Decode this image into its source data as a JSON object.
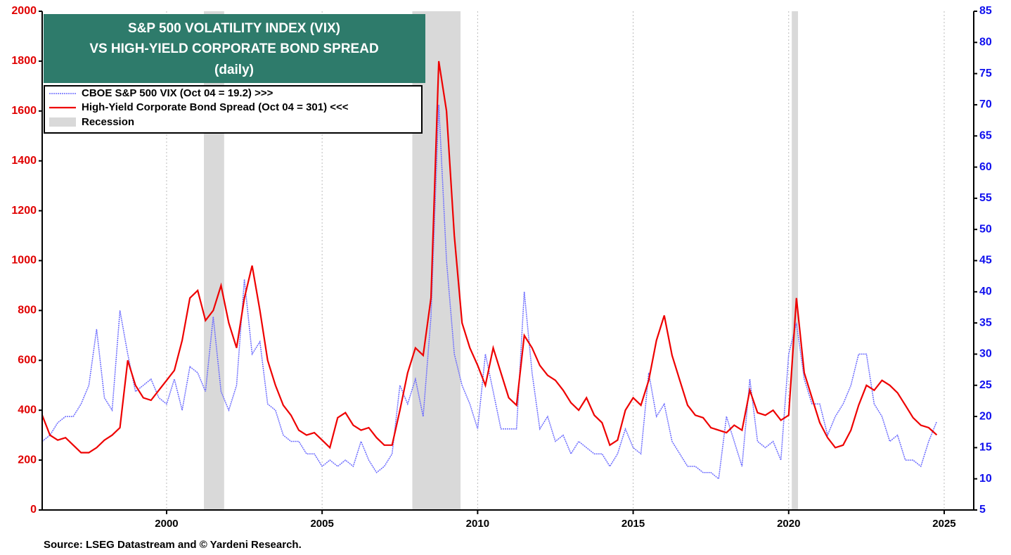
{
  "chart_data": {
    "type": "line",
    "title_lines": [
      "S&P 500 VOLATILITY INDEX (VIX)",
      "VS HIGH-YIELD CORPORATE BOND SPREAD",
      "(daily)"
    ],
    "source": "Source: LSEG Datastream and © Yardeni Research.",
    "recession_label": "Recession",
    "recession_color": "#d9d9d9",
    "recessions": [
      [
        2001.2,
        2001.85
      ],
      [
        2007.9,
        2009.45
      ],
      [
        2020.1,
        2020.3
      ]
    ],
    "x": [
      1996,
      1996.25,
      1996.5,
      1996.75,
      1997,
      1997.25,
      1997.5,
      1997.75,
      1998,
      1998.25,
      1998.5,
      1998.75,
      1999,
      1999.25,
      1999.5,
      1999.75,
      2000,
      2000.25,
      2000.5,
      2000.75,
      2001,
      2001.25,
      2001.5,
      2001.75,
      2002,
      2002.25,
      2002.5,
      2002.75,
      2003,
      2003.25,
      2003.5,
      2003.75,
      2004,
      2004.25,
      2004.5,
      2004.75,
      2005,
      2005.25,
      2005.5,
      2005.75,
      2006,
      2006.25,
      2006.5,
      2006.75,
      2007,
      2007.25,
      2007.5,
      2007.75,
      2008,
      2008.25,
      2008.5,
      2008.75,
      2009,
      2009.25,
      2009.5,
      2009.75,
      2010,
      2010.25,
      2010.5,
      2010.75,
      2011,
      2011.25,
      2011.5,
      2011.75,
      2012,
      2012.25,
      2012.5,
      2012.75,
      2013,
      2013.25,
      2013.5,
      2013.75,
      2014,
      2014.25,
      2014.5,
      2014.75,
      2015,
      2015.25,
      2015.5,
      2015.75,
      2016,
      2016.25,
      2016.5,
      2016.75,
      2017,
      2017.25,
      2017.5,
      2017.75,
      2018,
      2018.25,
      2018.5,
      2018.75,
      2019,
      2019.25,
      2019.5,
      2019.75,
      2020,
      2020.25,
      2020.5,
      2020.75,
      2021,
      2021.25,
      2021.5,
      2021.75,
      2022,
      2022.25,
      2022.5,
      2022.75,
      2023,
      2023.25,
      2023.5,
      2023.75,
      2024,
      2024.25,
      2024.5,
      2024.76
    ],
    "series": [
      {
        "name": "CBOE S&P 500 VIX (Oct 04 = 19.2) >>>",
        "color": "#6b6bff",
        "axis": "y2",
        "dashed": true,
        "values": [
          16,
          17,
          19,
          20,
          20,
          22,
          25,
          34,
          23,
          21,
          37,
          30,
          24,
          25,
          26,
          23,
          22,
          26,
          21,
          28,
          27,
          24,
          36,
          24,
          21,
          25,
          42,
          30,
          32,
          22,
          21,
          17,
          16,
          16,
          14,
          14,
          12,
          13,
          12,
          13,
          12,
          16,
          13,
          11,
          12,
          14,
          25,
          22,
          26,
          20,
          36,
          70,
          45,
          30,
          25,
          22,
          18,
          30,
          24,
          18,
          18,
          18,
          40,
          27,
          18,
          20,
          16,
          17,
          14,
          16,
          15,
          14,
          14,
          12,
          14,
          18,
          15,
          14,
          27,
          20,
          22,
          16,
          14,
          12,
          12,
          11,
          11,
          10,
          20,
          16,
          12,
          26,
          16,
          15,
          16,
          13,
          30,
          35,
          26,
          22,
          22,
          17,
          20,
          22,
          25,
          30,
          30,
          22,
          20,
          16,
          17,
          13,
          13,
          12,
          16,
          19.2
        ]
      },
      {
        "name": "High-Yield Corporate Bond Spread (Oct 04 = 301) <<<",
        "color": "#ee0000",
        "axis": "y",
        "dashed": false,
        "values": [
          380,
          300,
          280,
          290,
          260,
          230,
          230,
          250,
          280,
          300,
          330,
          600,
          500,
          450,
          440,
          480,
          520,
          560,
          680,
          850,
          880,
          760,
          800,
          900,
          750,
          650,
          850,
          980,
          800,
          600,
          500,
          420,
          380,
          320,
          300,
          310,
          280,
          250,
          370,
          390,
          340,
          320,
          330,
          290,
          260,
          260,
          400,
          550,
          650,
          620,
          850,
          1800,
          1600,
          1100,
          750,
          650,
          580,
          500,
          650,
          550,
          450,
          420,
          700,
          650,
          580,
          540,
          520,
          480,
          430,
          400,
          450,
          380,
          350,
          260,
          280,
          400,
          450,
          420,
          520,
          680,
          780,
          620,
          520,
          420,
          380,
          370,
          330,
          320,
          310,
          340,
          320,
          480,
          390,
          380,
          400,
          360,
          380,
          850,
          550,
          450,
          350,
          290,
          250,
          260,
          320,
          420,
          500,
          480,
          520,
          500,
          470,
          420,
          370,
          340,
          330,
          301
        ]
      }
    ],
    "xlim": [
      1996,
      2025.95
    ],
    "xticks": [
      2000,
      2005,
      2010,
      2015,
      2020,
      2025
    ],
    "ylim": [
      0,
      2000
    ],
    "yticks": [
      0,
      200,
      400,
      600,
      800,
      1000,
      1200,
      1400,
      1600,
      1800,
      2000
    ],
    "y2lim": [
      5,
      85
    ],
    "y2ticks": [
      5,
      10,
      15,
      20,
      25,
      30,
      35,
      40,
      45,
      50,
      55,
      60,
      65,
      70,
      75,
      80,
      85
    ]
  }
}
